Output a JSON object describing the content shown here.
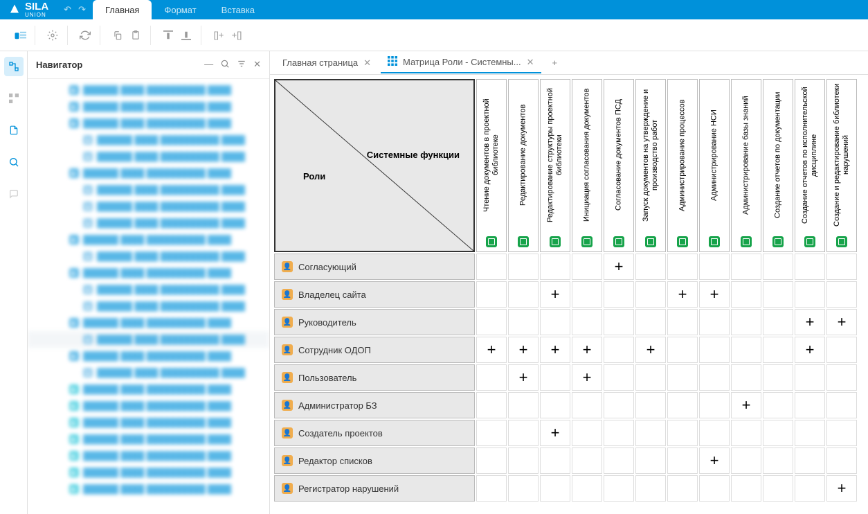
{
  "app": {
    "name": "SILA",
    "sub": "UNION"
  },
  "topTabs": {
    "main": "Главная",
    "format": "Формат",
    "insert": "Вставка"
  },
  "navigator": {
    "title": "Навигатор"
  },
  "docTabs": {
    "t1": "Главная страница",
    "t2": "Матрица Роли - Системны..."
  },
  "corner": {
    "roles": "Роли",
    "funcs": "Системные функции"
  },
  "columns": [
    "Чтение документов в проектной библиотеке",
    "Редактирование документов",
    "Редактирование структуры проектной библиотеки",
    "Инициация согласования документов",
    "Согласование документов ПСД",
    "Запуск документов на утверждение и производство работ",
    "Администрирование процессов",
    "Администрирование НСИ",
    "Администрирование базы знаний",
    "Создание отчетов по документации",
    "Создание отчетов по исполнительской дисциплине",
    "Создание и редактирование библиотеки нарушений"
  ],
  "rows": [
    "Согласующий",
    "Владелец сайта",
    "Руководитель",
    "Сотрудник ОДОП",
    "Пользователь",
    "Администратор БЗ",
    "Создатель проектов",
    "Редактор списков",
    "Регистратор нарушений"
  ],
  "marks": {
    "0": [
      4
    ],
    "1": [
      2,
      6,
      7
    ],
    "2": [
      10,
      11
    ],
    "3": [
      0,
      1,
      2,
      3,
      5,
      10
    ],
    "4": [
      1,
      3
    ],
    "5": [
      8
    ],
    "6": [
      2
    ],
    "7": [
      7
    ],
    "8": [
      11
    ]
  },
  "navTree": [
    {
      "t": "dot",
      "indent": 0
    },
    {
      "t": "dot",
      "indent": 0
    },
    {
      "t": "dot",
      "indent": 0
    },
    {
      "t": "tri",
      "indent": 1
    },
    {
      "t": "tri",
      "indent": 1
    },
    {
      "t": "dot",
      "indent": 0
    },
    {
      "t": "tri",
      "indent": 1
    },
    {
      "t": "tri",
      "indent": 1
    },
    {
      "t": "tri",
      "indent": 1
    },
    {
      "t": "dot",
      "indent": 0
    },
    {
      "t": "tri",
      "indent": 1
    },
    {
      "t": "dot",
      "indent": 0
    },
    {
      "t": "tri",
      "indent": 1
    },
    {
      "t": "tri",
      "indent": 1
    },
    {
      "t": "dot",
      "indent": 0
    },
    {
      "t": "tri",
      "indent": 1,
      "hl": true
    },
    {
      "t": "dot",
      "indent": 0
    },
    {
      "t": "tri",
      "indent": 1
    },
    {
      "t": "cyan",
      "indent": 0
    },
    {
      "t": "cyan",
      "indent": 0
    },
    {
      "t": "cyan",
      "indent": 0
    },
    {
      "t": "cyan",
      "indent": 0
    },
    {
      "t": "cyan",
      "indent": 0
    },
    {
      "t": "cyan",
      "indent": 0
    },
    {
      "t": "cyan",
      "indent": 0
    }
  ]
}
